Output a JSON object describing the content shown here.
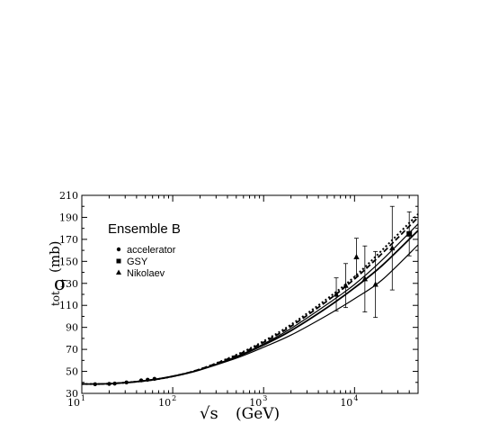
{
  "chart_data": {
    "type": "line",
    "title": "Ensemble  B",
    "xlabel": {
      "root": "√s",
      "unit": "(GeV)"
    },
    "ylabel": {
      "sigma": "σ",
      "sub": "tot",
      "unit": "(mb)"
    },
    "xscale": "log",
    "xlim": [
      10,
      50000
    ],
    "ylim": [
      30,
      210
    ],
    "grid": false,
    "legend_position": "top-left",
    "x_ticks": [
      {
        "value": 10,
        "base": "10",
        "exp": "1"
      },
      {
        "value": 100,
        "base": "10",
        "exp": "2"
      },
      {
        "value": 1000,
        "base": "10",
        "exp": "3"
      },
      {
        "value": 10000,
        "base": "10",
        "exp": "4"
      }
    ],
    "y_ticks": [
      "30",
      "50",
      "70",
      "90",
      "110",
      "130",
      "150",
      "170",
      "190",
      "210"
    ],
    "legend": [
      {
        "marker": "circle",
        "label": "accelerator"
      },
      {
        "marker": "square",
        "label": "GSY"
      },
      {
        "marker": "triangle",
        "label": "Nikolaev"
      }
    ],
    "curves": [
      {
        "style": "solid",
        "width": 1.8,
        "x": [
          10,
          20,
          50,
          100,
          200,
          500,
          1000,
          2000,
          5000,
          10000,
          20000,
          50000
        ],
        "y": [
          38.5,
          38.8,
          41.5,
          45.5,
          51.5,
          63,
          74,
          87,
          108,
          126,
          146,
          178
        ]
      },
      {
        "style": "solid",
        "width": 1.2,
        "x": [
          10,
          20,
          50,
          100,
          200,
          500,
          1000,
          2000,
          5000,
          10000,
          20000,
          50000
        ],
        "y": [
          38.5,
          38.8,
          41.5,
          45.5,
          51.5,
          62,
          72,
          83,
          101,
          116,
          133,
          165
        ]
      },
      {
        "style": "solid",
        "width": 1.2,
        "x": [
          10,
          20,
          50,
          100,
          200,
          500,
          1000,
          2000,
          5000,
          10000,
          20000,
          50000
        ],
        "y": [
          38.5,
          38.8,
          41.5,
          45.5,
          51.5,
          63.5,
          75,
          89,
          111,
          129,
          151,
          184
        ]
      },
      {
        "style": "dashed",
        "width": 1.8,
        "x": [
          10,
          20,
          50,
          100,
          200,
          500,
          1000,
          2000,
          5000,
          10000,
          20000,
          50000
        ],
        "y": [
          38.5,
          38.8,
          41.5,
          45.5,
          52,
          64.5,
          76.5,
          91,
          114,
          134,
          157,
          190
        ]
      },
      {
        "style": "dotted",
        "width": 2.0,
        "x": [
          10,
          20,
          50,
          100,
          200,
          500,
          1000,
          2000,
          5000,
          10000,
          20000,
          50000
        ],
        "y": [
          38.5,
          38.8,
          41.5,
          45.5,
          52,
          65,
          77.5,
          92.5,
          116,
          136,
          160,
          193
        ]
      }
    ],
    "series": [
      {
        "marker": "circle",
        "points": [
          {
            "x": 14,
            "y": 38.3
          },
          {
            "x": 20,
            "y": 38.6
          },
          {
            "x": 23,
            "y": 38.9
          },
          {
            "x": 31,
            "y": 40.0
          },
          {
            "x": 45,
            "y": 41.8
          },
          {
            "x": 53,
            "y": 42.4
          },
          {
            "x": 63,
            "y": 43.2
          }
        ]
      },
      {
        "marker": "square",
        "points": [
          {
            "x": 40000,
            "y": 175,
            "err": 20
          }
        ]
      },
      {
        "marker": "triangle",
        "points": [
          {
            "x": 6300,
            "y": 120,
            "err": 15
          },
          {
            "x": 8000,
            "y": 128,
            "err": 20
          },
          {
            "x": 10500,
            "y": 154,
            "err": 17
          },
          {
            "x": 13000,
            "y": 134,
            "err": 30
          },
          {
            "x": 17000,
            "y": 129,
            "err": 30
          },
          {
            "x": 26000,
            "y": 162,
            "err": 38
          }
        ]
      }
    ]
  }
}
